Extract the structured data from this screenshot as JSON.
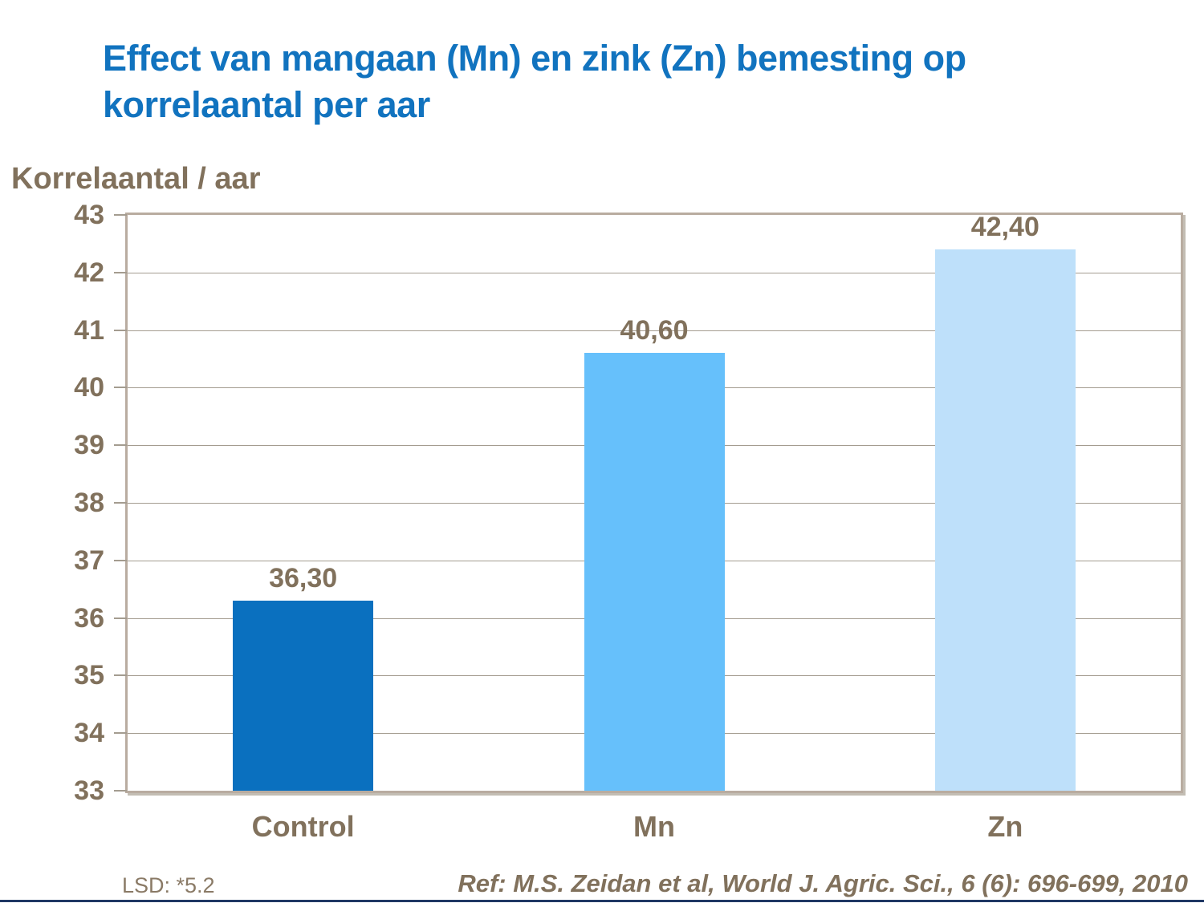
{
  "title": {
    "line1": "Effect van mangaan (Mn) en zink (Zn) bemesting op",
    "line2": "korrelaantal per aar"
  },
  "chart_data": {
    "type": "bar",
    "title": "Effect van mangaan (Mn) en zink (Zn) bemesting op korrelaantal per aar",
    "categories": [
      "Control",
      "Mn",
      "Zn"
    ],
    "values": [
      36.3,
      40.6,
      42.4
    ],
    "value_labels": [
      "36,30",
      "40,60",
      "42,40"
    ],
    "bar_colors": [
      "#0a70bf",
      "#66c0fb",
      "#bee0fa"
    ],
    "xlabel": "",
    "ylabel": "Korrelaantal / aar",
    "ylim": [
      33,
      43
    ],
    "ytick_step": 1,
    "grid": true,
    "legend": "none"
  },
  "footer": {
    "lsd": "LSD: *5.2",
    "reference": "Ref: M.S. Zeidan et al, World J. Agric. Sci., 6 (6): 696-699, 2010"
  },
  "colors": {
    "title_blue": "#1173bf",
    "text_brown": "#81715c",
    "gridline": "#a49c90",
    "plot_border": "#b9aca0",
    "bottom_strip": "#1f3864"
  }
}
